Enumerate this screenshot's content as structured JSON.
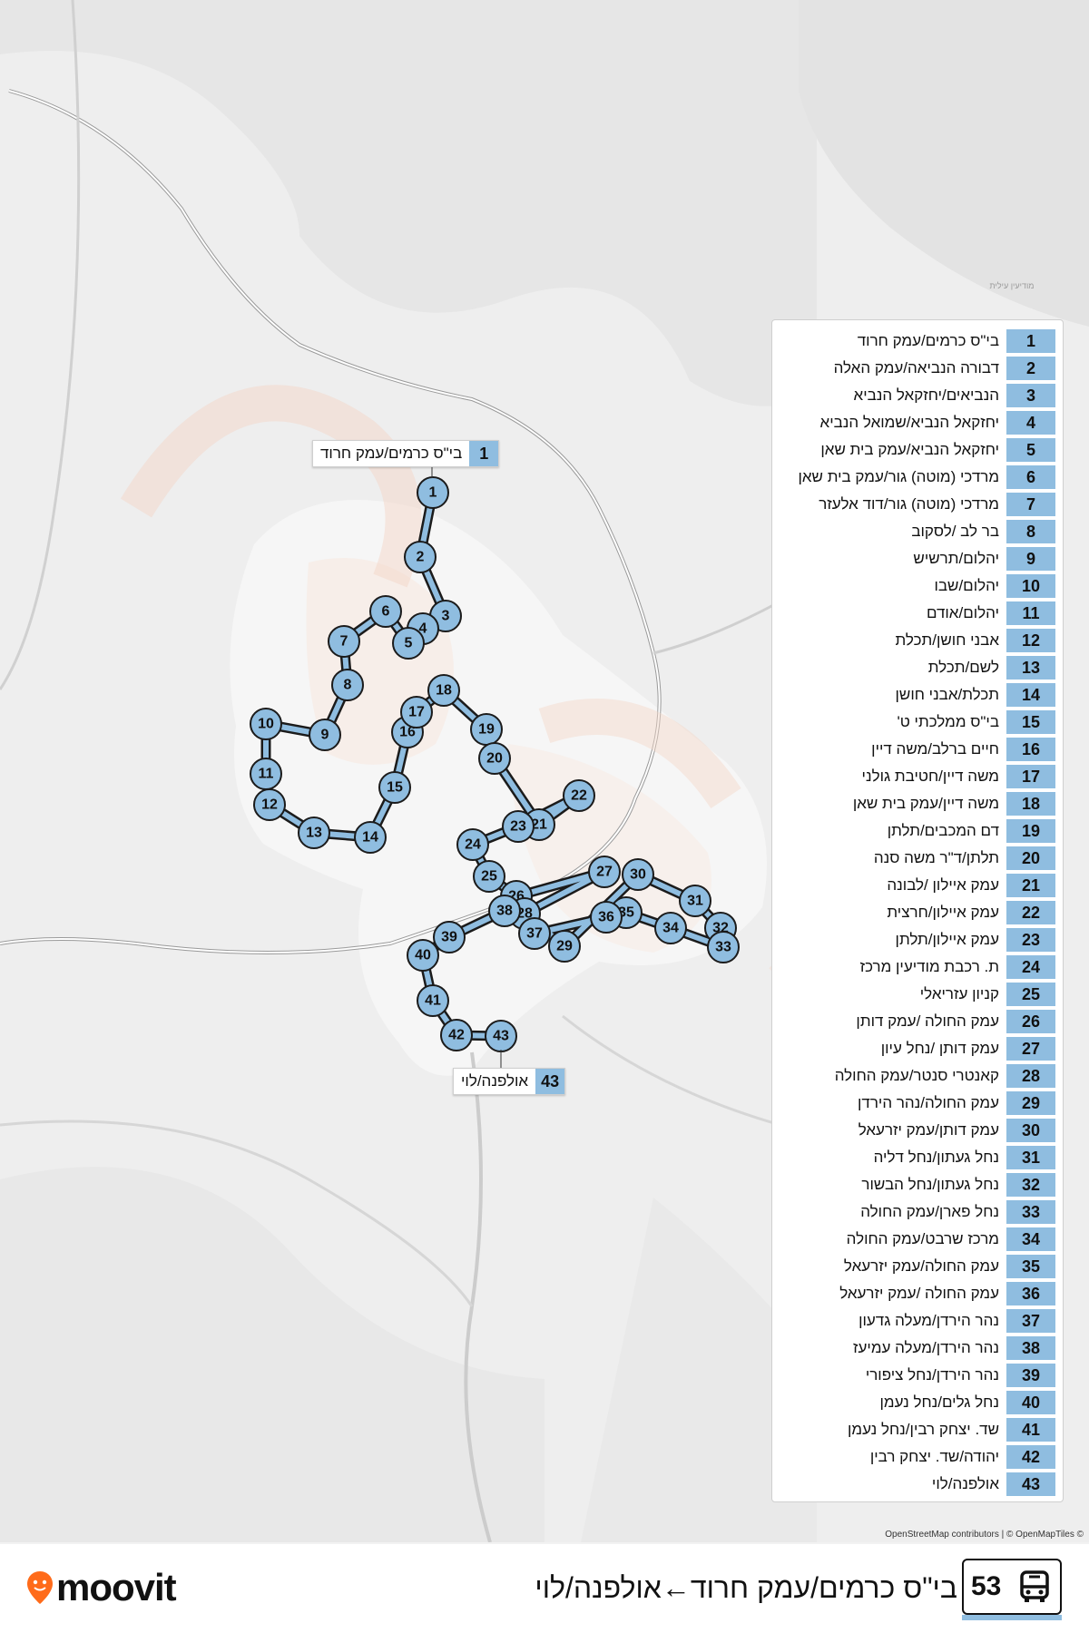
{
  "route": {
    "number": "53",
    "title": "בי\"ס כרמים/עמק חרוד←אולפנה/לוי"
  },
  "brand": {
    "name": "moovit",
    "accent": "#ff6b1a"
  },
  "colors": {
    "route_line": "#8fbde0",
    "route_outline": "#1b1b1b",
    "map_bg": "#eeeeee"
  },
  "map": {
    "place_label_city": "מודיעין עילית",
    "attribution": "OpenStreetMap contributors | © OpenMapTiles ©",
    "start_label": {
      "num": "1",
      "name": "בי\"ס כרמים/עמק חרוד"
    },
    "end_label": {
      "num": "43",
      "name": "אולפנה/לוי"
    }
  },
  "icons": {
    "footer_left": "moovit-pin-icon",
    "badge": "bus-icon"
  },
  "stops": [
    {
      "num": "1",
      "name": "בי\"ס כרמים/עמק חרוד"
    },
    {
      "num": "2",
      "name": "דבורה הנביאה/עמק האלה"
    },
    {
      "num": "3",
      "name": "הנביאים/יחזקאל הנביא"
    },
    {
      "num": "4",
      "name": "יחזקאל הנביא/שמואל הנביא"
    },
    {
      "num": "5",
      "name": "יחזקאל הנביא/עמק בית שאן"
    },
    {
      "num": "6",
      "name": "מרדכי (מוטה) גור/עמק בית שאן"
    },
    {
      "num": "7",
      "name": "מרדכי (מוטה) גור/דוד אלעזר"
    },
    {
      "num": "8",
      "name": "בר לב /לסקוב"
    },
    {
      "num": "9",
      "name": "יהלום/תרשיש"
    },
    {
      "num": "10",
      "name": "יהלום/שבו"
    },
    {
      "num": "11",
      "name": "יהלום/אודם"
    },
    {
      "num": "12",
      "name": "אבני חושן/תכלת"
    },
    {
      "num": "13",
      "name": "לשם/תכלת"
    },
    {
      "num": "14",
      "name": "תכלת/אבני חושן"
    },
    {
      "num": "15",
      "name": "בי\"ס ממלכתי ט'"
    },
    {
      "num": "16",
      "name": "חיים ברלב/משה דיין"
    },
    {
      "num": "17",
      "name": "משה דיין/חטיבת גולני"
    },
    {
      "num": "18",
      "name": "משה דיין/עמק בית שאן"
    },
    {
      "num": "19",
      "name": "דם המכבים/תלתן"
    },
    {
      "num": "20",
      "name": "תלתן/ד\"ר משה סנה"
    },
    {
      "num": "21",
      "name": "עמק איילון /לבונה"
    },
    {
      "num": "22",
      "name": "עמק איילון/חרצית"
    },
    {
      "num": "23",
      "name": "עמק איילון/תלתן"
    },
    {
      "num": "24",
      "name": "ת. רכבת מודיעין מרכז"
    },
    {
      "num": "25",
      "name": "קניון עזריאלי"
    },
    {
      "num": "26",
      "name": "עמק החולה /עמק דותן"
    },
    {
      "num": "27",
      "name": "עמק דותן /נחל עיון"
    },
    {
      "num": "28",
      "name": "קאנטרי סנטר/עמק החולה"
    },
    {
      "num": "29",
      "name": "עמק החולה/נהר הירדן"
    },
    {
      "num": "30",
      "name": "עמק דותן/עמק יזרעאל"
    },
    {
      "num": "31",
      "name": "נחל געתון/נחל דליה"
    },
    {
      "num": "32",
      "name": "נחל געתון/נחל הבשור"
    },
    {
      "num": "33",
      "name": "נחל פארן/עמק החולה"
    },
    {
      "num": "34",
      "name": "מרכז שרבט/עמק החולה"
    },
    {
      "num": "35",
      "name": "עמק החולה/עמק יזרעאל"
    },
    {
      "num": "36",
      "name": "עמק החולה /עמק יזרעאל"
    },
    {
      "num": "37",
      "name": "נהר הירדן/מעלה גדעון"
    },
    {
      "num": "38",
      "name": "נהר הירדן/מעלה עמיעז"
    },
    {
      "num": "39",
      "name": "נהר הירדן/נחל ציפורי"
    },
    {
      "num": "40",
      "name": "נחל גלים/נחל נעמן"
    },
    {
      "num": "41",
      "name": "שד. יצחק רבין/נחל נעמן"
    },
    {
      "num": "42",
      "name": "יהודה/שד. יצחק רבין"
    },
    {
      "num": "43",
      "name": "אולפנה/לוי"
    }
  ]
}
